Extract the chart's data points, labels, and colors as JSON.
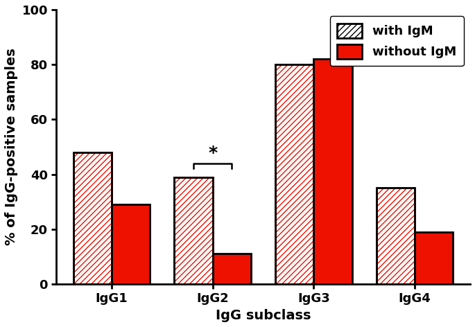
{
  "categories": [
    "IgG1",
    "IgG2",
    "IgG3",
    "IgG4"
  ],
  "with_IgM": [
    48,
    39,
    80,
    35
  ],
  "without_IgM": [
    29,
    11,
    82,
    19
  ],
  "bar_color": "#EE1100",
  "hatch_pattern": "////",
  "ylabel": "% of IgG-positive samples",
  "xlabel": "IgG subclass",
  "ylim": [
    0,
    100
  ],
  "yticks": [
    0,
    20,
    40,
    60,
    80,
    100
  ],
  "legend_labels": [
    "with IgM",
    "without IgM"
  ],
  "significance_group": 1,
  "significance_label": "*",
  "bar_width": 0.38,
  "label_fontsize": 14,
  "tick_fontsize": 13,
  "legend_fontsize": 13
}
